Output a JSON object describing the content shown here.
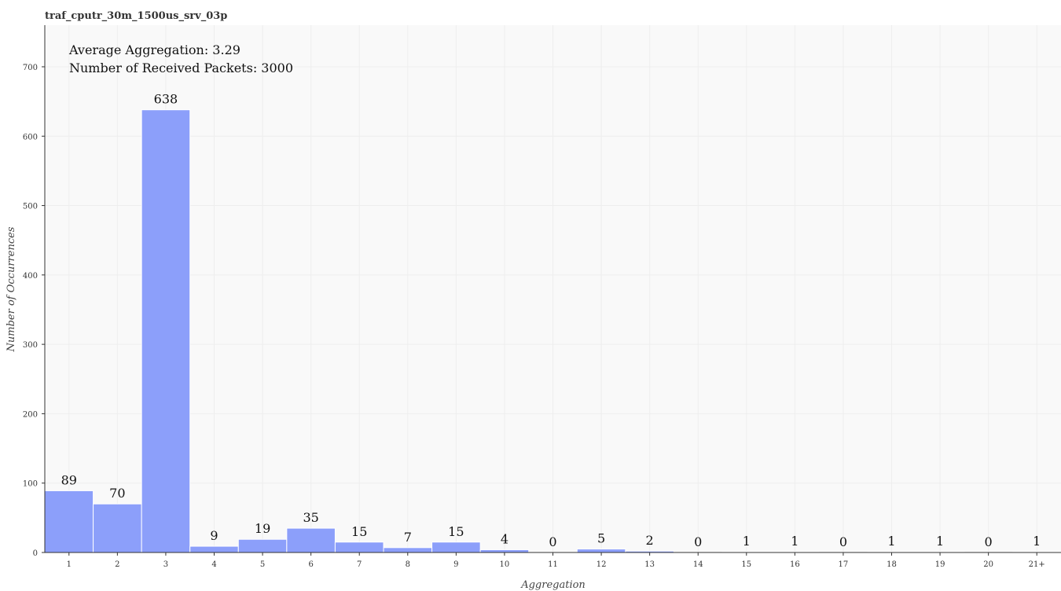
{
  "chart_data": {
    "type": "bar",
    "title": "traf_cputr_30m_1500us_srv_03p",
    "xlabel": "Aggregation",
    "ylabel": "Number of Occurrences",
    "categories": [
      "1",
      "2",
      "3",
      "4",
      "5",
      "6",
      "7",
      "8",
      "9",
      "10",
      "11",
      "12",
      "13",
      "14",
      "15",
      "16",
      "17",
      "18",
      "19",
      "20",
      "21+"
    ],
    "values": [
      89,
      70,
      638,
      9,
      19,
      35,
      15,
      7,
      15,
      4,
      0,
      5,
      2,
      0,
      1,
      1,
      0,
      1,
      1,
      0,
      1
    ],
    "data_labels": [
      "89",
      "70",
      "638",
      "9",
      "19",
      "35",
      "15",
      "7",
      "15",
      "4",
      "0",
      "5",
      "2",
      "0",
      "1",
      "1",
      "0",
      "1",
      "1",
      "0",
      "1"
    ],
    "ylim": [
      0,
      760
    ],
    "yticks": [
      0,
      100,
      200,
      300,
      400,
      500,
      600,
      700
    ],
    "annotations": [
      "Average Aggregation: 3.29",
      "Number of Received Packets: 3000"
    ],
    "grid": true,
    "bar_color": "#8c9ffa",
    "background_color": "#f9f9f9",
    "grid_color": "#eeeeee"
  }
}
